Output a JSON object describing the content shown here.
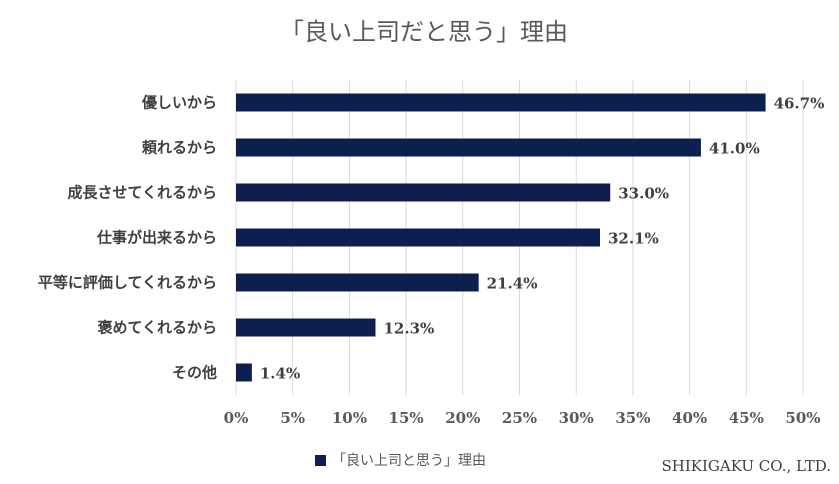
{
  "chart_data": {
    "type": "bar",
    "orientation": "horizontal",
    "title": "「良い上司だと思う」理由",
    "categories": [
      "優しいから",
      "頼れるから",
      "成長させてくれるから",
      "仕事が出来るから",
      "平等に評価してくれるから",
      "褒めてくれるから",
      "その他"
    ],
    "values": [
      46.7,
      41.0,
      33.0,
      32.1,
      21.4,
      12.3,
      1.4
    ],
    "data_labels": [
      "46.7%",
      "41.0%",
      "33.0%",
      "32.1%",
      "21.4%",
      "12.3%",
      "1.4%"
    ],
    "series": [
      {
        "name": "「良い上司と思う」理由",
        "values": [
          46.7,
          41.0,
          33.0,
          32.1,
          21.4,
          12.3,
          1.4
        ]
      }
    ],
    "xlim": [
      0,
      50
    ],
    "xticks": [
      "0%",
      "5%",
      "10%",
      "15%",
      "20%",
      "25%",
      "30%",
      "35%",
      "40%",
      "45%",
      "50%"
    ],
    "grid": true,
    "legend_position": "bottom",
    "bar_color": "#0d1f4f",
    "grid_color": "#d9d9d9"
  },
  "footer": {
    "company": "SHIKIGAKU CO., LTD."
  }
}
